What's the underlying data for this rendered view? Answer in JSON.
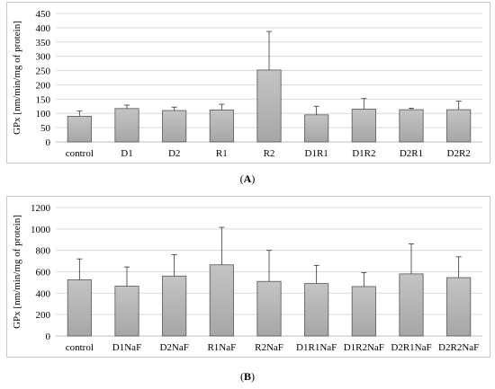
{
  "chart_data": [
    {
      "type": "bar",
      "panel_label": "A",
      "ylabel": "GPx [nm/min/mg of protein]",
      "ylim": [
        0,
        450
      ],
      "yticks": [
        0,
        50,
        100,
        150,
        200,
        250,
        300,
        350,
        400,
        450
      ],
      "grid": true,
      "categories": [
        "control",
        "D1",
        "D2",
        "R1",
        "R2",
        "D1R1",
        "D1R2",
        "D2R1",
        "D2R2"
      ],
      "values": [
        90,
        117,
        110,
        112,
        252,
        95,
        115,
        113,
        113
      ],
      "errors": [
        18,
        12,
        12,
        20,
        135,
        30,
        37,
        5,
        30
      ],
      "bar_color": "#a6a6a6"
    },
    {
      "type": "bar",
      "panel_label": "B",
      "ylabel": "GPx [nm/min/mg of protein]",
      "ylim": [
        0,
        1200
      ],
      "yticks": [
        0,
        200,
        400,
        600,
        800,
        1000,
        1200
      ],
      "grid": true,
      "categories": [
        "control",
        "D1NaF",
        "D2NaF",
        "R1NaF",
        "R2NaF",
        "D1R1NaF",
        "D1R2NaF",
        "D2R1NaF",
        "D2R2NaF"
      ],
      "values": [
        525,
        465,
        560,
        665,
        510,
        490,
        462,
        580,
        545
      ],
      "errors": [
        195,
        180,
        200,
        350,
        290,
        170,
        130,
        280,
        195
      ],
      "bar_color": "#a6a6a6"
    }
  ]
}
